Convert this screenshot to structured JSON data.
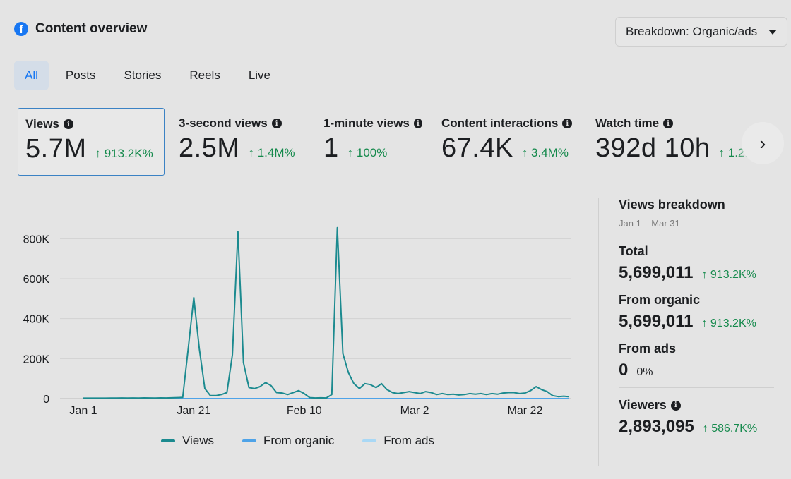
{
  "header": {
    "title": "Content overview",
    "breakdown_label": "Breakdown: Organic/ads"
  },
  "tabs": [
    {
      "label": "All",
      "active": true
    },
    {
      "label": "Posts",
      "active": false
    },
    {
      "label": "Stories",
      "active": false
    },
    {
      "label": "Reels",
      "active": false
    },
    {
      "label": "Live",
      "active": false
    }
  ],
  "metrics": [
    {
      "label": "Views",
      "value": "5.7M",
      "change": "913.2K%",
      "selected": true
    },
    {
      "label": "3-second views",
      "value": "2.5M",
      "change": "1.4M%"
    },
    {
      "label": "1-minute views",
      "value": "1",
      "change": "100%"
    },
    {
      "label": "Content interactions",
      "value": "67.4K",
      "change": "3.4M%"
    },
    {
      "label": "Watch time",
      "value": "392d 10h",
      "change": "1.2..."
    }
  ],
  "icons": {
    "info": "info-icon",
    "up_arrow": "↑",
    "next": "›"
  },
  "chart_data": {
    "type": "line",
    "y_ticks": [
      "0",
      "200K",
      "400K",
      "600K",
      "800K"
    ],
    "x_ticks": [
      "Jan 1",
      "Jan 21",
      "Feb 10",
      "Mar 2",
      "Mar 22"
    ],
    "ylim": [
      0,
      900000
    ],
    "series": [
      {
        "name": "Views",
        "color": "#1b8a8f",
        "values": [
          2000,
          2000,
          2000,
          2000,
          2000,
          2500,
          2500,
          3000,
          2500,
          3000,
          2500,
          3500,
          3000,
          2500,
          3500,
          3000,
          4000,
          5000,
          6000,
          250000,
          505000,
          250000,
          50000,
          15000,
          15000,
          20000,
          30000,
          220000,
          835000,
          180000,
          55000,
          50000,
          60000,
          80000,
          65000,
          30000,
          28000,
          20000,
          30000,
          40000,
          25000,
          5000,
          3000,
          4000,
          3000,
          20000,
          855000,
          225000,
          130000,
          75000,
          50000,
          75000,
          70000,
          55000,
          75000,
          45000,
          30000,
          25000,
          30000,
          35000,
          30000,
          25000,
          35000,
          30000,
          20000,
          25000,
          20000,
          22000,
          18000,
          20000,
          25000,
          22000,
          25000,
          20000,
          25000,
          22000,
          28000,
          30000,
          30000,
          25000,
          28000,
          40000,
          60000,
          45000,
          35000,
          15000,
          10000,
          12000,
          9000
        ]
      },
      {
        "name": "From organic",
        "color": "#4ea3e8",
        "values": []
      },
      {
        "name": "From ads",
        "color": "#a9d8f5",
        "values": []
      }
    ]
  },
  "legend": [
    {
      "label": "Views",
      "color": "#1b8a8f"
    },
    {
      "label": "From organic",
      "color": "#4ea3e8"
    },
    {
      "label": "From ads",
      "color": "#a9d8f5"
    }
  ],
  "panel": {
    "title": "Views breakdown",
    "date_range": "Jan 1 – Mar 31",
    "total_label": "Total",
    "total_value": "5,699,011",
    "total_change": "913.2K%",
    "organic_label": "From organic",
    "organic_value": "5,699,011",
    "organic_change": "913.2K%",
    "ads_label": "From ads",
    "ads_value": "0",
    "ads_pct": "0%",
    "viewers_label": "Viewers",
    "viewers_value": "2,893,095",
    "viewers_change": "586.7K%"
  }
}
